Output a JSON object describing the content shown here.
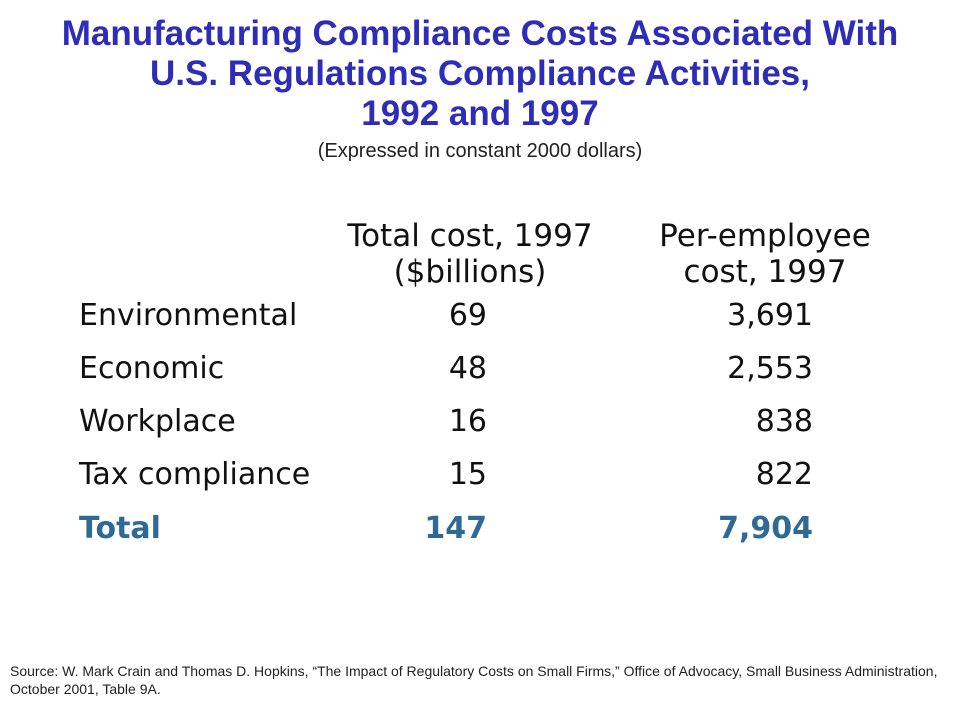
{
  "title": {
    "lines": [
      "Manufacturing Compliance Costs Associated With",
      "U.S. Regulations Compliance Activities,",
      "1992 and 1997"
    ],
    "subtitle": "(Expressed in constant 2000 dollars)"
  },
  "table": {
    "headers": {
      "total_cost": [
        "Total cost, 1997",
        "($billions)"
      ],
      "per_employee": [
        "Per-employee",
        "cost, 1997"
      ]
    },
    "rows": [
      {
        "label": "Environmental",
        "total_cost": "69",
        "per_employee": "3,691"
      },
      {
        "label": "Economic",
        "total_cost": "48",
        "per_employee": "2,553"
      },
      {
        "label": "Workplace",
        "total_cost": "16",
        "per_employee": "838"
      },
      {
        "label": "Tax compliance",
        "total_cost": "15",
        "per_employee": "822"
      }
    ],
    "total": {
      "label": "Total",
      "total_cost": "147",
      "per_employee": "7,904"
    }
  },
  "source": "Source:  W. Mark Crain and Thomas D. Hopkins, “The Impact of Regulatory Costs on Small Firms,” Office of Advocacy, Small Business Administration, October 2001, Table 9A.",
  "colors": {
    "title": "#2d2db8",
    "total_row": "#2f6a96",
    "text": "#111111"
  }
}
